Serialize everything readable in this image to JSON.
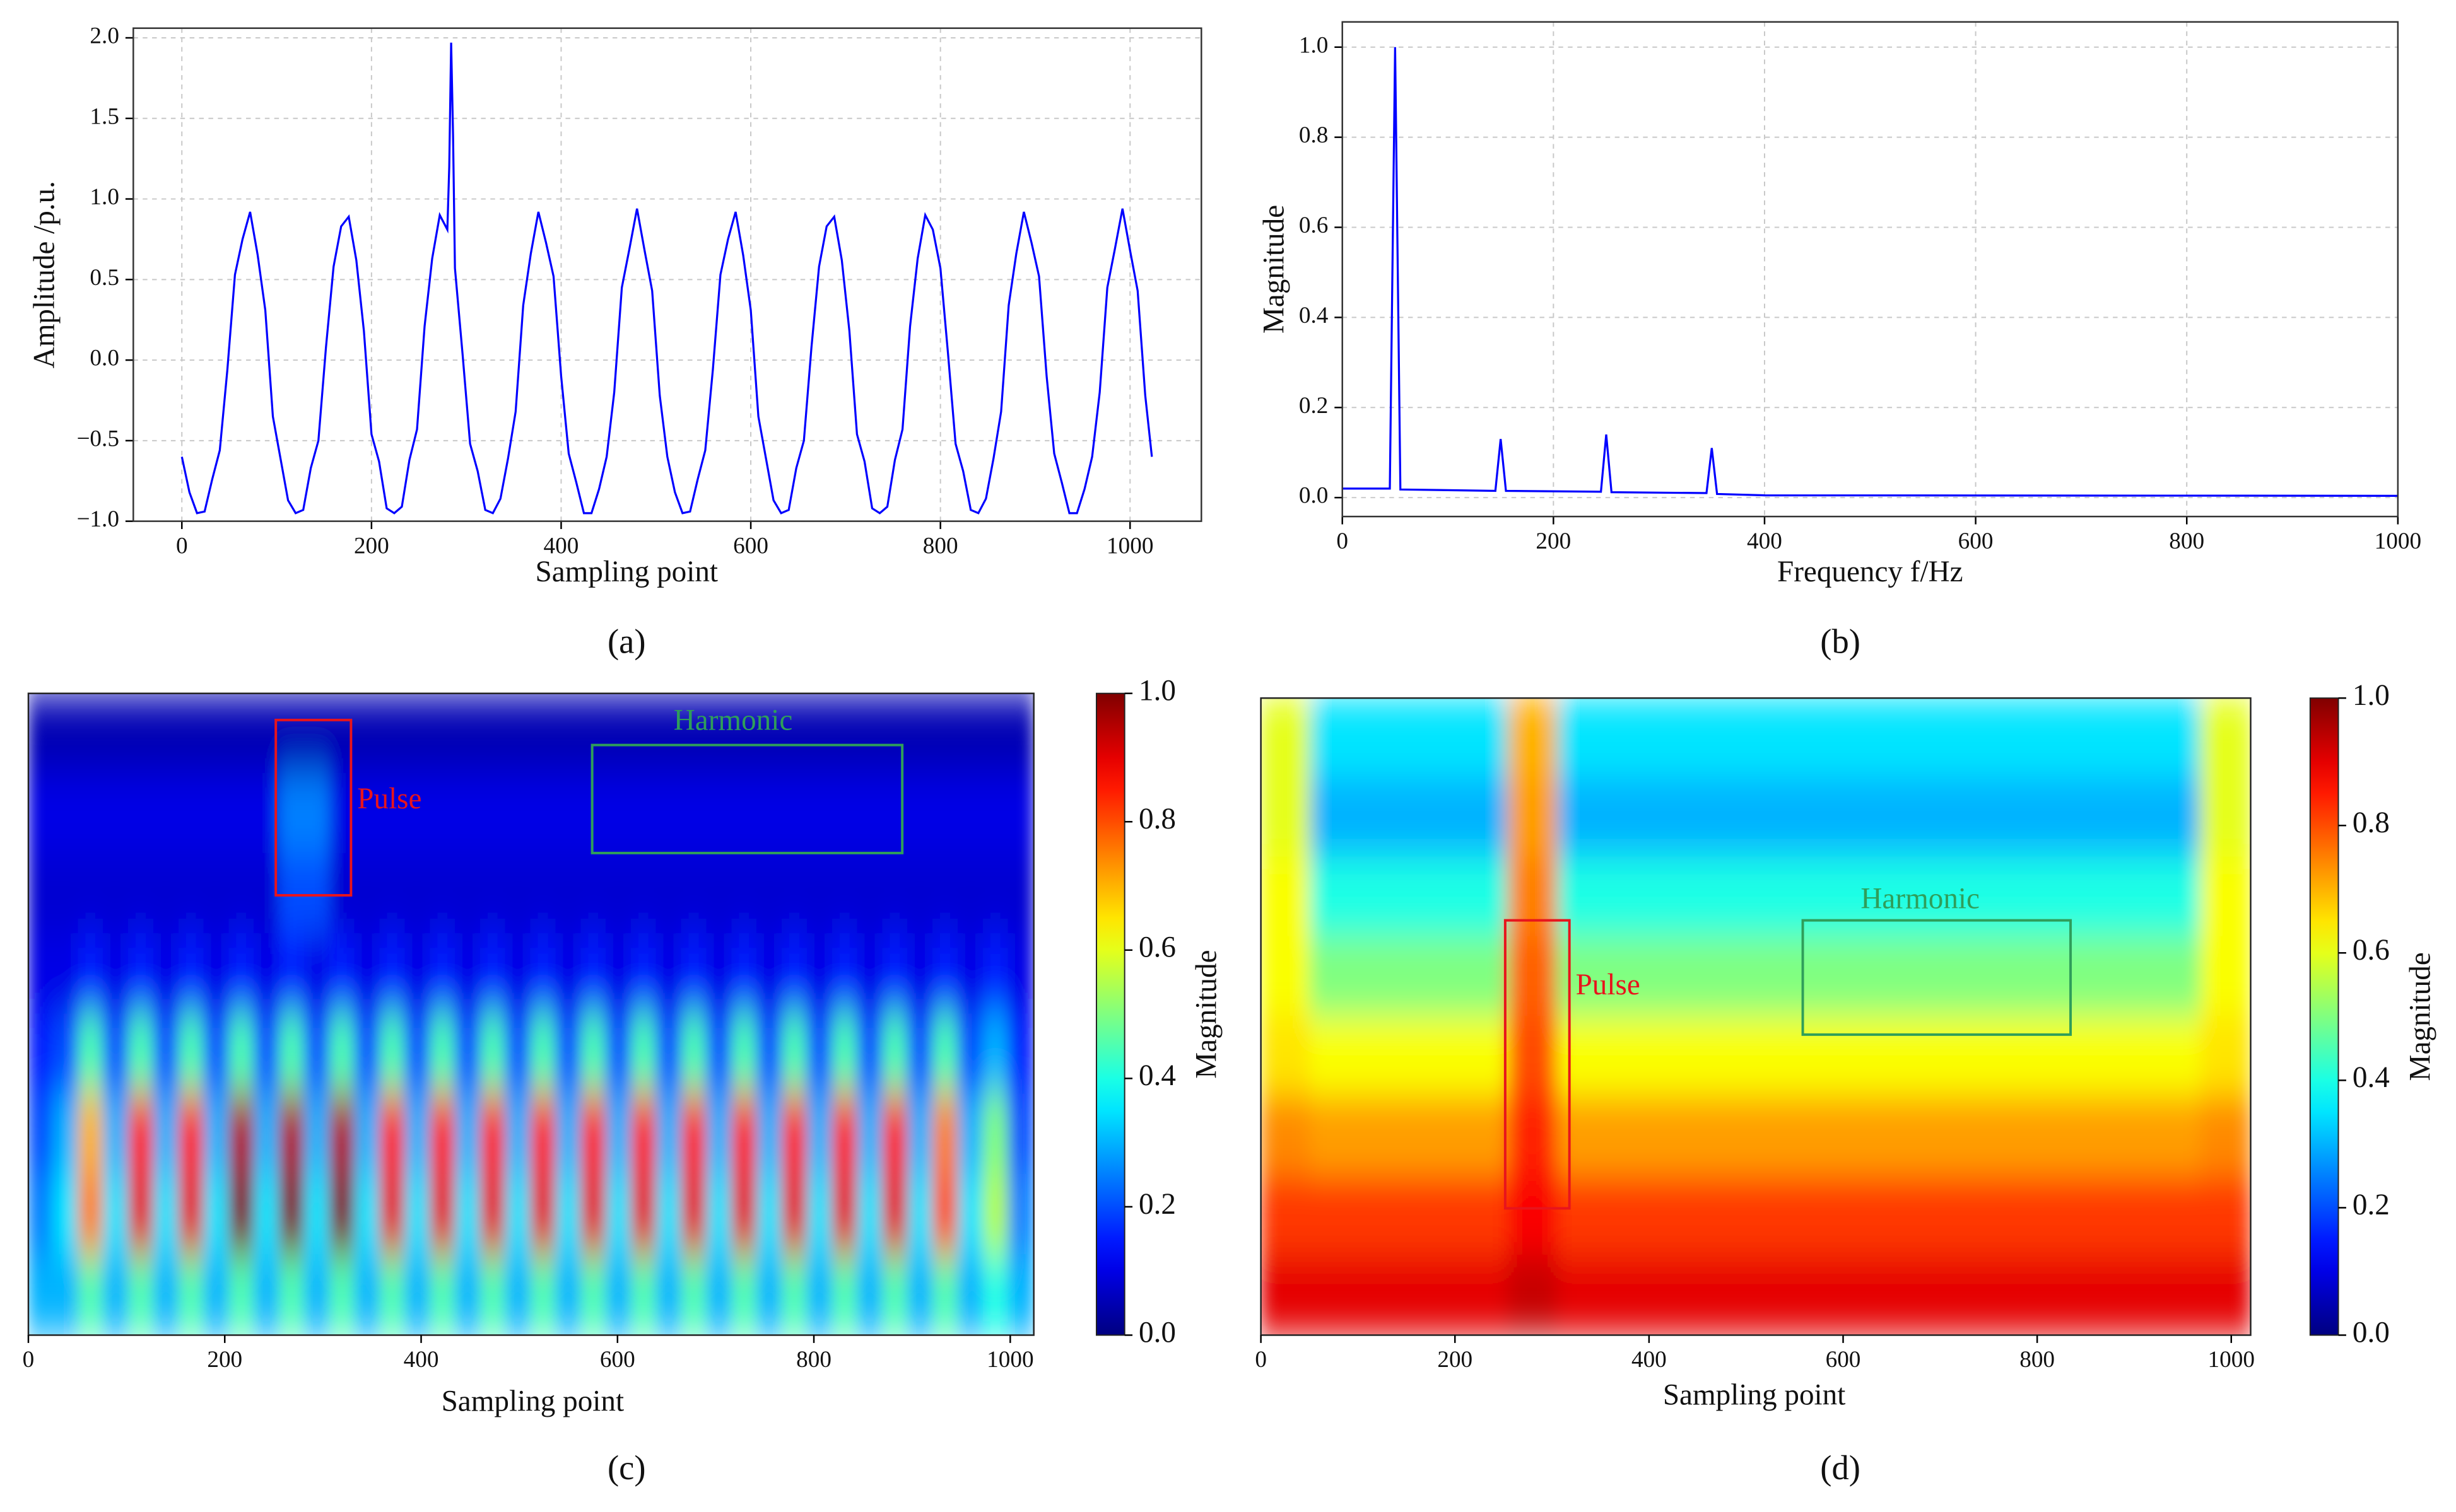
{
  "chart_data": [
    {
      "type": "line",
      "caption": "(a)",
      "x_label": "Sampling point",
      "y_label": "Amplitude /p.u.",
      "color": "#0000ff",
      "grid": true,
      "xlim": [
        -51.2,
        1075.2
      ],
      "ylim": [
        -1.0,
        2.06
      ],
      "xticks": [
        0,
        200,
        400,
        600,
        800,
        1000
      ],
      "yticks": [
        {
          "value": 2,
          "label": "2.0"
        },
        {
          "value": 1.5,
          "label": "1.5"
        },
        {
          "value": 1,
          "label": "1.0"
        },
        {
          "value": 0.5,
          "label": "0.5"
        },
        {
          "value": 0,
          "label": "0.0"
        },
        {
          "value": -0.5,
          "label": "−0.5"
        },
        {
          "value": -1,
          "label": "−1.0"
        }
      ],
      "x": [
        0,
        8,
        16,
        24,
        32,
        40,
        48,
        56,
        64,
        72,
        80,
        88,
        96,
        104,
        112,
        120,
        128,
        136,
        144,
        152,
        160,
        168,
        176,
        184,
        192,
        200,
        208,
        216,
        224,
        232,
        240,
        248,
        256,
        264,
        272,
        280,
        282,
        284,
        286,
        288,
        296,
        304,
        312,
        320,
        328,
        336,
        344,
        352,
        360,
        368,
        376,
        384,
        392,
        400,
        408,
        416,
        424,
        432,
        440,
        448,
        456,
        464,
        472,
        480,
        488,
        496,
        504,
        512,
        520,
        528,
        536,
        544,
        552,
        560,
        568,
        576,
        584,
        592,
        600,
        608,
        616,
        624,
        632,
        640,
        648,
        656,
        664,
        672,
        680,
        688,
        696,
        704,
        712,
        720,
        728,
        736,
        744,
        752,
        760,
        768,
        776,
        784,
        792,
        800,
        808,
        816,
        824,
        832,
        840,
        848,
        856,
        864,
        872,
        880,
        888,
        896,
        904,
        912,
        920,
        928,
        936,
        944,
        952,
        960,
        968,
        976,
        984,
        992,
        1000,
        1008,
        1016,
        1023
      ],
      "values": [
        -0.6,
        -0.82,
        -0.95,
        -0.94,
        -0.74,
        -0.56,
        -0.06,
        0.53,
        0.75,
        0.92,
        0.65,
        0.31,
        -0.35,
        -0.61,
        -0.87,
        -0.95,
        -0.93,
        -0.67,
        -0.5,
        0.08,
        0.58,
        0.83,
        0.89,
        0.62,
        0.18,
        -0.46,
        -0.63,
        -0.92,
        -0.95,
        -0.91,
        -0.62,
        -0.43,
        0.21,
        0.63,
        0.9,
        0.81,
        1.2,
        1.97,
        1.4,
        0.57,
        0.04,
        -0.52,
        -0.69,
        -0.93,
        -0.95,
        -0.86,
        -0.61,
        -0.32,
        0.34,
        0.66,
        0.92,
        0.73,
        0.52,
        -0.1,
        -0.58,
        -0.76,
        -0.95,
        -0.95,
        -0.8,
        -0.6,
        -0.2,
        0.45,
        0.69,
        0.94,
        0.68,
        0.43,
        -0.22,
        -0.6,
        -0.82,
        -0.95,
        -0.94,
        -0.74,
        -0.56,
        -0.06,
        0.53,
        0.75,
        0.92,
        0.65,
        0.31,
        -0.35,
        -0.61,
        -0.87,
        -0.95,
        -0.93,
        -0.67,
        -0.5,
        0.08,
        0.58,
        0.83,
        0.89,
        0.62,
        0.18,
        -0.46,
        -0.63,
        -0.92,
        -0.95,
        -0.91,
        -0.62,
        -0.43,
        0.21,
        0.63,
        0.9,
        0.81,
        0.57,
        0.04,
        -0.52,
        -0.69,
        -0.93,
        -0.95,
        -0.86,
        -0.61,
        -0.32,
        0.34,
        0.66,
        0.92,
        0.73,
        0.52,
        -0.1,
        -0.58,
        -0.76,
        -0.95,
        -0.95,
        -0.8,
        -0.6,
        -0.2,
        0.45,
        0.69,
        0.94,
        0.68,
        0.43,
        -0.22,
        -0.6
      ]
    },
    {
      "type": "line",
      "caption": "(b)",
      "x_label": "Frequency f/Hz",
      "y_label": "Magnitude",
      "color": "#0000ff",
      "grid": true,
      "xlim": [
        0,
        1000
      ],
      "ylim": [
        -0.042,
        1.056
      ],
      "xticks": [
        0,
        200,
        400,
        600,
        800,
        1000
      ],
      "yticks": [
        {
          "value": 0,
          "label": "0.0"
        },
        {
          "value": 0.2,
          "label": "0.2"
        },
        {
          "value": 0.4,
          "label": "0.4"
        },
        {
          "value": 0.6,
          "label": "0.6"
        },
        {
          "value": 0.8,
          "label": "0.8"
        },
        {
          "value": 1,
          "label": "1.0"
        }
      ],
      "x": [
        0,
        45,
        50,
        55,
        145,
        150,
        155,
        245,
        250,
        255,
        345,
        350,
        355,
        400,
        1000
      ],
      "values": [
        0.02,
        0.02,
        1.0,
        0.018,
        0.015,
        0.13,
        0.015,
        0.013,
        0.14,
        0.012,
        0.01,
        0.11,
        0.008,
        0.005,
        0.004
      ]
    },
    {
      "type": "heatmap",
      "caption": "(c)",
      "x_label": "Sampling point",
      "colorbar_label": "Magnitude",
      "colormap": "jet",
      "xlim": [
        0,
        1024
      ],
      "xticks": [
        0,
        200,
        400,
        600,
        800,
        1000
      ],
      "clim": [
        0,
        1
      ],
      "cticks": [
        {
          "value": 0,
          "label": "0.0"
        },
        {
          "value": 0.2,
          "label": "0.2"
        },
        {
          "value": 0.4,
          "label": "0.4"
        },
        {
          "value": 0.6,
          "label": "0.6"
        },
        {
          "value": 0.8,
          "label": "0.8"
        },
        {
          "value": 1,
          "label": "1.0"
        }
      ],
      "annotations": [
        {
          "text": "Pulse",
          "color": "#e8141c"
        },
        {
          "text": "Harmonic",
          "color": "#2f9e5a"
        }
      ],
      "values": [
        [
          0.05,
          0.05,
          0.05,
          0.05,
          0.05,
          0.05,
          0.05,
          0.05,
          0.05,
          0.05,
          0.05,
          0.05,
          0.05,
          0.05,
          0.05,
          0.05,
          0.05,
          0.05,
          0.05,
          0.05,
          0.05,
          0.05,
          0.05,
          0.05,
          0.05,
          0.05,
          0.05,
          0.05,
          0.05,
          0.05,
          0.05,
          0.05,
          0.05,
          0.05,
          0.05,
          0.05,
          0.05,
          0.05,
          0.05,
          0.05
        ],
        [
          0.1,
          0.1,
          0.1,
          0.1,
          0.1,
          0.1,
          0.1,
          0.1,
          0.1,
          0.1,
          0.25,
          0.25,
          0.1,
          0.1,
          0.1,
          0.1,
          0.1,
          0.1,
          0.1,
          0.1,
          0.1,
          0.1,
          0.1,
          0.1,
          0.1,
          0.1,
          0.1,
          0.1,
          0.1,
          0.1,
          0.1,
          0.1,
          0.1,
          0.1,
          0.1,
          0.1,
          0.1,
          0.1,
          0.1,
          0.1
        ],
        [
          0.08,
          0.08,
          0.08,
          0.08,
          0.08,
          0.08,
          0.08,
          0.08,
          0.08,
          0.08,
          0.2,
          0.2,
          0.08,
          0.08,
          0.08,
          0.08,
          0.08,
          0.08,
          0.08,
          0.08,
          0.08,
          0.08,
          0.08,
          0.08,
          0.08,
          0.08,
          0.08,
          0.08,
          0.08,
          0.08,
          0.08,
          0.08,
          0.08,
          0.08,
          0.08,
          0.08,
          0.08,
          0.08,
          0.08,
          0.08
        ],
        [
          0.1,
          0.1,
          0.15,
          0.1,
          0.15,
          0.1,
          0.15,
          0.1,
          0.15,
          0.1,
          0.15,
          0.1,
          0.15,
          0.1,
          0.15,
          0.1,
          0.15,
          0.1,
          0.15,
          0.1,
          0.15,
          0.1,
          0.15,
          0.1,
          0.15,
          0.1,
          0.15,
          0.1,
          0.15,
          0.1,
          0.15,
          0.1,
          0.15,
          0.1,
          0.15,
          0.1,
          0.15,
          0.1,
          0.15,
          0.1
        ],
        [
          0.15,
          0.2,
          0.45,
          0.2,
          0.45,
          0.2,
          0.45,
          0.2,
          0.45,
          0.2,
          0.45,
          0.2,
          0.45,
          0.2,
          0.45,
          0.2,
          0.45,
          0.2,
          0.45,
          0.2,
          0.45,
          0.2,
          0.45,
          0.2,
          0.45,
          0.2,
          0.45,
          0.2,
          0.45,
          0.2,
          0.45,
          0.2,
          0.45,
          0.2,
          0.45,
          0.2,
          0.45,
          0.2,
          0.3,
          0.15
        ],
        [
          0.2,
          0.3,
          0.7,
          0.3,
          0.85,
          0.3,
          0.85,
          0.3,
          0.95,
          0.3,
          0.95,
          0.3,
          0.95,
          0.3,
          0.85,
          0.3,
          0.85,
          0.3,
          0.85,
          0.3,
          0.85,
          0.3,
          0.85,
          0.3,
          0.85,
          0.3,
          0.85,
          0.3,
          0.85,
          0.3,
          0.85,
          0.3,
          0.85,
          0.3,
          0.85,
          0.3,
          0.75,
          0.3,
          0.5,
          0.2
        ],
        [
          0.25,
          0.35,
          0.75,
          0.35,
          0.9,
          0.35,
          0.9,
          0.35,
          1.0,
          0.35,
          1.0,
          0.35,
          1.0,
          0.35,
          0.9,
          0.35,
          0.9,
          0.35,
          0.9,
          0.35,
          0.9,
          0.35,
          0.9,
          0.35,
          0.9,
          0.35,
          0.9,
          0.35,
          0.9,
          0.35,
          0.9,
          0.35,
          0.9,
          0.35,
          0.9,
          0.35,
          0.8,
          0.35,
          0.55,
          0.25
        ],
        [
          0.3,
          0.3,
          0.45,
          0.3,
          0.45,
          0.3,
          0.45,
          0.3,
          0.45,
          0.3,
          0.45,
          0.3,
          0.45,
          0.3,
          0.45,
          0.3,
          0.45,
          0.3,
          0.45,
          0.3,
          0.45,
          0.3,
          0.45,
          0.3,
          0.45,
          0.3,
          0.45,
          0.3,
          0.45,
          0.3,
          0.45,
          0.3,
          0.45,
          0.3,
          0.45,
          0.3,
          0.45,
          0.3,
          0.4,
          0.3
        ]
      ]
    },
    {
      "type": "heatmap",
      "caption": "(d)",
      "x_label": "Sampling point",
      "colorbar_label": "Magnitude",
      "colormap": "jet",
      "xlim": [
        0,
        1020
      ],
      "xticks": [
        0,
        200,
        400,
        600,
        800,
        1000
      ],
      "clim": [
        0,
        1
      ],
      "cticks": [
        {
          "value": 0,
          "label": "0.0"
        },
        {
          "value": 0.2,
          "label": "0.2"
        },
        {
          "value": 0.4,
          "label": "0.4"
        },
        {
          "value": 0.6,
          "label": "0.6"
        },
        {
          "value": 0.8,
          "label": "0.8"
        },
        {
          "value": 1,
          "label": "1.0"
        }
      ],
      "annotations": [
        {
          "text": "Pulse",
          "color": "#e8141c"
        },
        {
          "text": "Harmonic",
          "color": "#2f9e5a"
        }
      ],
      "values": [
        [
          0.6,
          0.35,
          0.35,
          0.35,
          0.35,
          0.7,
          0.35,
          0.35,
          0.35,
          0.35,
          0.35,
          0.35,
          0.35,
          0.35,
          0.35,
          0.35,
          0.35,
          0.35,
          0.35,
          0.6
        ],
        [
          0.6,
          0.3,
          0.3,
          0.3,
          0.3,
          0.72,
          0.3,
          0.3,
          0.3,
          0.3,
          0.3,
          0.3,
          0.3,
          0.3,
          0.3,
          0.3,
          0.3,
          0.3,
          0.3,
          0.6
        ],
        [
          0.62,
          0.4,
          0.4,
          0.4,
          0.4,
          0.75,
          0.4,
          0.4,
          0.4,
          0.4,
          0.4,
          0.4,
          0.4,
          0.4,
          0.4,
          0.4,
          0.4,
          0.4,
          0.4,
          0.62
        ],
        [
          0.62,
          0.5,
          0.5,
          0.5,
          0.5,
          0.78,
          0.5,
          0.5,
          0.5,
          0.5,
          0.5,
          0.5,
          0.5,
          0.5,
          0.5,
          0.5,
          0.5,
          0.5,
          0.5,
          0.62
        ],
        [
          0.65,
          0.62,
          0.62,
          0.62,
          0.62,
          0.8,
          0.62,
          0.62,
          0.62,
          0.62,
          0.62,
          0.62,
          0.62,
          0.62,
          0.62,
          0.62,
          0.62,
          0.62,
          0.62,
          0.65
        ],
        [
          0.74,
          0.72,
          0.72,
          0.72,
          0.72,
          0.84,
          0.72,
          0.72,
          0.72,
          0.72,
          0.72,
          0.72,
          0.72,
          0.72,
          0.72,
          0.72,
          0.72,
          0.72,
          0.72,
          0.74
        ],
        [
          0.82,
          0.82,
          0.82,
          0.82,
          0.82,
          0.88,
          0.82,
          0.82,
          0.82,
          0.82,
          0.82,
          0.82,
          0.82,
          0.82,
          0.82,
          0.82,
          0.82,
          0.82,
          0.82,
          0.82
        ],
        [
          0.9,
          0.9,
          0.9,
          0.9,
          0.9,
          0.93,
          0.9,
          0.9,
          0.9,
          0.9,
          0.9,
          0.9,
          0.9,
          0.9,
          0.9,
          0.9,
          0.9,
          0.9,
          0.9,
          0.9
        ]
      ]
    }
  ]
}
